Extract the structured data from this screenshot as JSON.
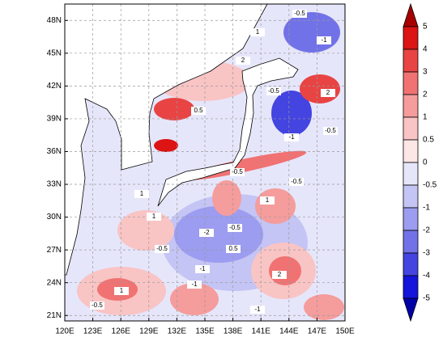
{
  "chart_data": {
    "type": "contour-map",
    "xlim": [
      120,
      150
    ],
    "ylim": [
      20.5,
      49.5
    ],
    "xticks": [
      {
        "value": 120,
        "label": "120E"
      },
      {
        "value": 123,
        "label": "123E"
      },
      {
        "value": 126,
        "label": "126E"
      },
      {
        "value": 129,
        "label": "129E"
      },
      {
        "value": 132,
        "label": "132E"
      },
      {
        "value": 135,
        "label": "135E"
      },
      {
        "value": 138,
        "label": "138E"
      },
      {
        "value": 141,
        "label": "141E"
      },
      {
        "value": 144,
        "label": "144E"
      },
      {
        "value": 147,
        "label": "147E"
      },
      {
        "value": 150,
        "label": "150E"
      }
    ],
    "yticks": [
      {
        "value": 21,
        "label": "21N"
      },
      {
        "value": 24,
        "label": "24N"
      },
      {
        "value": 27,
        "label": "27N"
      },
      {
        "value": 30,
        "label": "30N"
      },
      {
        "value": 33,
        "label": "33N"
      },
      {
        "value": 36,
        "label": "36N"
      },
      {
        "value": 39,
        "label": "39N"
      },
      {
        "value": 42,
        "label": "42N"
      },
      {
        "value": 45,
        "label": "45N"
      },
      {
        "value": 48,
        "label": "48N"
      }
    ],
    "grid": true,
    "colorbar_levels": [
      5,
      4,
      3,
      2,
      1,
      0.5,
      0,
      -0.5,
      -1,
      -2,
      -3,
      -4,
      -5
    ],
    "colorbar_colors": [
      "#a80000",
      "#dc1414",
      "#e84444",
      "#f07272",
      "#f59c9c",
      "#f9c4c4",
      "#fde6e6",
      "#e6e6fb",
      "#c4c4f5",
      "#9c9cf0",
      "#7272e8",
      "#4444e0",
      "#1414dc",
      "#0000a8"
    ],
    "contour_labels": [
      -0.5,
      1,
      -1,
      2,
      -0.5,
      0.5,
      -1,
      -0.5,
      1,
      -2,
      -0.5,
      1,
      -1,
      0.5,
      -0.5,
      1,
      2,
      -1,
      -0.5,
      1,
      -0.5,
      -1,
      2,
      -0.5
    ]
  }
}
